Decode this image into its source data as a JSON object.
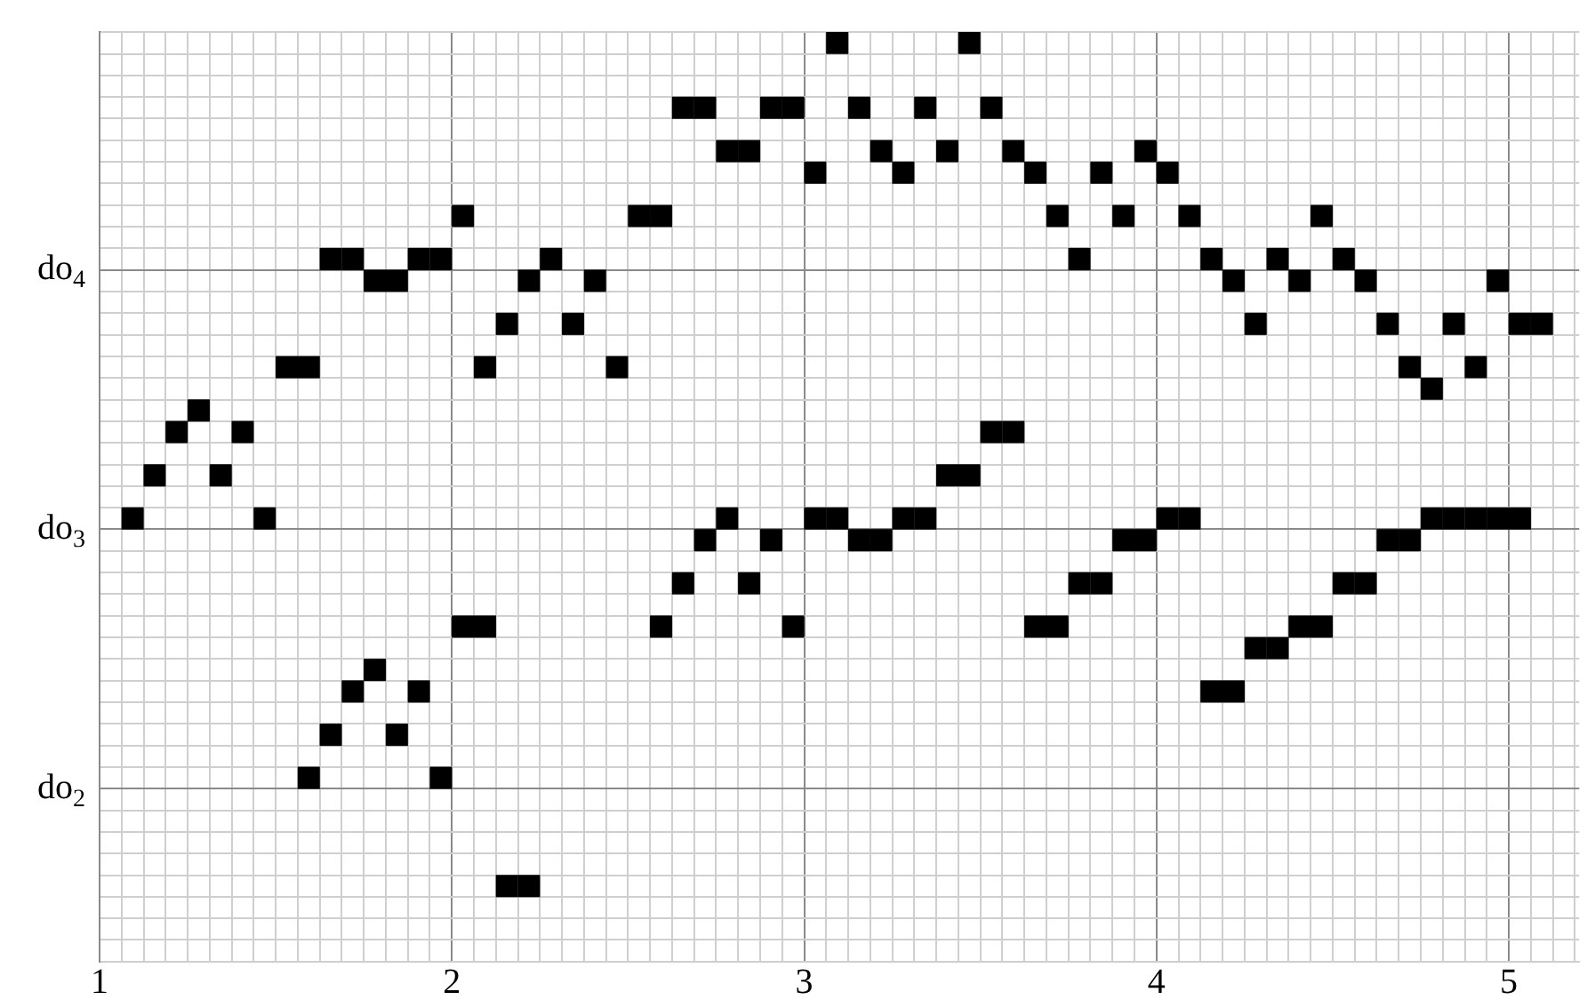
{
  "chart_data": {
    "type": "scatter",
    "marker": "square",
    "grid": true,
    "legend": false,
    "xlim": [
      1,
      5.2
    ],
    "ylim": [
      1.333,
      4.917
    ],
    "xticks": [
      1,
      {
        "value": 1.0625,
        "label": null
      },
      {
        "value": 1.125,
        "label": null
      },
      {
        "value": 1.1875,
        "label": null
      },
      {
        "value": 1.25,
        "label": null
      },
      {
        "value": 1.3125,
        "label": null
      },
      {
        "value": 1.375,
        "label": null
      },
      {
        "value": 1.4375,
        "label": null
      },
      {
        "value": 1.5,
        "label": null
      },
      {
        "value": 1.5625,
        "label": null
      },
      {
        "value": 1.625,
        "label": null
      },
      {
        "value": 1.6875,
        "label": null
      },
      {
        "value": 1.75,
        "label": null
      },
      {
        "value": 1.8125,
        "label": null
      },
      {
        "value": 1.875,
        "label": null
      },
      {
        "value": 1.9375,
        "label": null
      },
      2,
      {
        "value": 2.0625,
        "label": null
      },
      {
        "value": 2.125,
        "label": null
      },
      {
        "value": 2.1875,
        "label": null
      },
      {
        "value": 2.25,
        "label": null
      },
      {
        "value": 2.3125,
        "label": null
      },
      {
        "value": 2.375,
        "label": null
      },
      {
        "value": 2.4375,
        "label": null
      },
      {
        "value": 2.5,
        "label": null
      },
      {
        "value": 2.5625,
        "label": null
      },
      {
        "value": 2.625,
        "label": null
      },
      {
        "value": 2.6875,
        "label": null
      },
      {
        "value": 2.75,
        "label": null
      },
      {
        "value": 2.8125,
        "label": null
      },
      {
        "value": 2.875,
        "label": null
      },
      {
        "value": 2.9375,
        "label": null
      },
      3,
      {
        "value": 3.0625,
        "label": null
      },
      {
        "value": 3.125,
        "label": null
      },
      {
        "value": 3.1875,
        "label": null
      },
      {
        "value": 3.25,
        "label": null
      },
      {
        "value": 3.3125,
        "label": null
      },
      {
        "value": 3.375,
        "label": null
      },
      {
        "value": 3.4375,
        "label": null
      },
      {
        "value": 3.5,
        "label": null
      },
      {
        "value": 3.5625,
        "label": null
      },
      {
        "value": 3.625,
        "label": null
      },
      {
        "value": 3.6875,
        "label": null
      },
      {
        "value": 3.75,
        "label": null
      },
      {
        "value": 3.8125,
        "label": null
      },
      {
        "value": 3.875,
        "label": null
      },
      {
        "value": 3.9375,
        "label": null
      },
      4,
      {
        "value": 4.0625,
        "label": null
      },
      {
        "value": 4.125,
        "label": null
      },
      {
        "value": 4.1875,
        "label": null
      },
      {
        "value": 4.25,
        "label": null
      },
      {
        "value": 4.3125,
        "label": null
      },
      {
        "value": 4.375,
        "label": null
      },
      {
        "value": 4.4375,
        "label": null
      },
      {
        "value": 4.5,
        "label": null
      },
      {
        "value": 4.5625,
        "label": null
      },
      {
        "value": 4.625,
        "label": null
      },
      {
        "value": 4.6875,
        "label": null
      },
      {
        "value": 4.75,
        "label": null
      },
      {
        "value": 4.8125,
        "label": null
      },
      {
        "value": 4.875,
        "label": null
      },
      {
        "value": 4.9375,
        "label": null
      },
      5,
      {
        "value": 5.0625,
        "label": null
      },
      {
        "value": 5.125,
        "label": null
      },
      {
        "value": 5.1875,
        "label": null
      }
    ],
    "yticks": [
      {
        "value": 1.333,
        "label": null
      },
      {
        "value": 1.417,
        "label": null
      },
      {
        "value": 1.5,
        "label": null
      },
      {
        "value": 1.583,
        "label": null
      },
      {
        "value": 1.667,
        "label": null
      },
      {
        "value": 1.75,
        "label": null
      },
      {
        "value": 1.833,
        "label": null
      },
      {
        "value": 1.917,
        "label": null
      },
      {
        "value": 2,
        "label": "do$_{2}$"
      },
      {
        "value": 2.083,
        "label": null
      },
      {
        "value": 2.167,
        "label": null
      },
      {
        "value": 2.25,
        "label": null
      },
      {
        "value": 2.333,
        "label": null
      },
      {
        "value": 2.417,
        "label": null
      },
      {
        "value": 2.5,
        "label": null
      },
      {
        "value": 2.583,
        "label": null
      },
      {
        "value": 2.667,
        "label": null
      },
      {
        "value": 2.75,
        "label": null
      },
      {
        "value": 2.833,
        "label": null
      },
      {
        "value": 2.917,
        "label": null
      },
      {
        "value": 3,
        "label": "do$_{3}$"
      },
      {
        "value": 3.083,
        "label": null
      },
      {
        "value": 3.167,
        "label": null
      },
      {
        "value": 3.25,
        "label": null
      },
      {
        "value": 3.333,
        "label": null
      },
      {
        "value": 3.417,
        "label": null
      },
      {
        "value": 3.5,
        "label": null
      },
      {
        "value": 3.583,
        "label": null
      },
      {
        "value": 3.667,
        "label": null
      },
      {
        "value": 3.75,
        "label": null
      },
      {
        "value": 3.833,
        "label": null
      },
      {
        "value": 3.917,
        "label": null
      },
      {
        "value": 4,
        "label": "do$_{4}$"
      },
      {
        "value": 4.083,
        "label": null
      },
      {
        "value": 4.167,
        "label": null
      },
      {
        "value": 4.25,
        "label": null
      },
      {
        "value": 4.333,
        "label": null
      },
      {
        "value": 4.417,
        "label": null
      },
      {
        "value": 4.5,
        "label": null
      },
      {
        "value": 4.583,
        "label": null
      },
      {
        "value": 4.667,
        "label": null
      },
      {
        "value": 4.75,
        "label": null
      },
      {
        "value": 4.833,
        "label": null
      },
      {
        "value": 4.917,
        "label": null
      }
    ],
    "series": [
      {
        "color": "#000000",
        "x": [
          1.09375,
          1.15625,
          1.21875,
          1.28125,
          1.34375,
          1.40625,
          1.46875,
          1.53125,
          1.59375,
          1.65625,
          1.71875,
          1.78125,
          1.84375,
          1.90625,
          1.96875,
          2.03125,
          2.09375,
          2.15625,
          2.21875,
          2.28125,
          2.34375,
          2.40625,
          2.46875,
          2.53125,
          2.59375,
          2.65625,
          2.71875,
          2.78125,
          2.84375,
          2.90625,
          2.96875,
          3.03125,
          3.09375,
          3.15625,
          3.21875,
          3.28125,
          3.34375,
          3.40625,
          3.46875,
          3.53125,
          3.59375,
          3.65625,
          3.71875,
          3.78125,
          3.84375,
          3.90625,
          3.96875,
          4.03125,
          4.09375,
          4.15625,
          4.21875,
          4.28125,
          4.34375,
          4.40625,
          4.46875,
          4.53125,
          4.59375,
          4.65625,
          4.71875,
          4.78125,
          4.84375,
          4.90625,
          4.96875,
          5.03125,
          5.09375
        ],
        "values": [
          3.042,
          3.208,
          3.375,
          3.458,
          3.208,
          3.375,
          3.042,
          3.625,
          3.625,
          4.042,
          4.042,
          3.958,
          3.958,
          4.042,
          4.042,
          4.208,
          3.625,
          3.792,
          3.958,
          4.042,
          3.792,
          3.958,
          3.625,
          4.208,
          4.208,
          4.625,
          4.625,
          4.458,
          4.458,
          4.625,
          4.625,
          4.375,
          4.875,
          4.625,
          4.458,
          4.375,
          4.625,
          4.458,
          4.875,
          4.625,
          4.458,
          4.375,
          4.208,
          4.042,
          4.375,
          4.208,
          4.458,
          4.375,
          4.208,
          4.042,
          3.958,
          3.792,
          4.042,
          3.958,
          4.208,
          4.042,
          3.958,
          3.792,
          3.625,
          3.542,
          3.792,
          3.625,
          3.958,
          3.792,
          3.792
        ]
      },
      {
        "color": "#000000",
        "x": [
          1.59375,
          1.65625,
          1.71875,
          1.78125,
          1.84375,
          1.90625,
          1.96875,
          2.03125,
          2.09375,
          2.15625,
          2.21875,
          2.59375,
          2.65625,
          2.71875,
          2.78125,
          2.84375,
          2.90625,
          2.96875,
          3.03125,
          3.09375,
          3.15625,
          3.21875,
          3.28125,
          3.34375,
          3.40625,
          3.46875,
          3.53125,
          3.59375,
          3.65625,
          3.71875,
          3.78125,
          3.84375,
          3.90625,
          3.96875,
          4.03125,
          4.09375,
          4.15625,
          4.21875,
          4.28125,
          4.34375,
          4.40625,
          4.46875,
          4.53125,
          4.59375,
          4.65625,
          4.71875,
          4.78125,
          4.84375,
          4.90625,
          4.96875,
          5.03125
        ],
        "values": [
          2.042,
          2.208,
          2.375,
          2.458,
          2.208,
          2.375,
          2.042,
          2.625,
          2.625,
          1.625,
          1.625,
          2.625,
          2.792,
          2.958,
          3.042,
          2.792,
          2.958,
          2.625,
          3.042,
          3.042,
          2.958,
          2.958,
          3.042,
          3.042,
          3.208,
          3.208,
          3.375,
          3.375,
          2.625,
          2.625,
          2.792,
          2.792,
          2.958,
          2.958,
          3.042,
          3.042,
          2.375,
          2.375,
          2.542,
          2.542,
          2.625,
          2.625,
          2.792,
          2.792,
          2.958,
          2.958,
          3.042,
          3.042,
          3.042,
          3.042,
          3.042
        ]
      }
    ]
  }
}
